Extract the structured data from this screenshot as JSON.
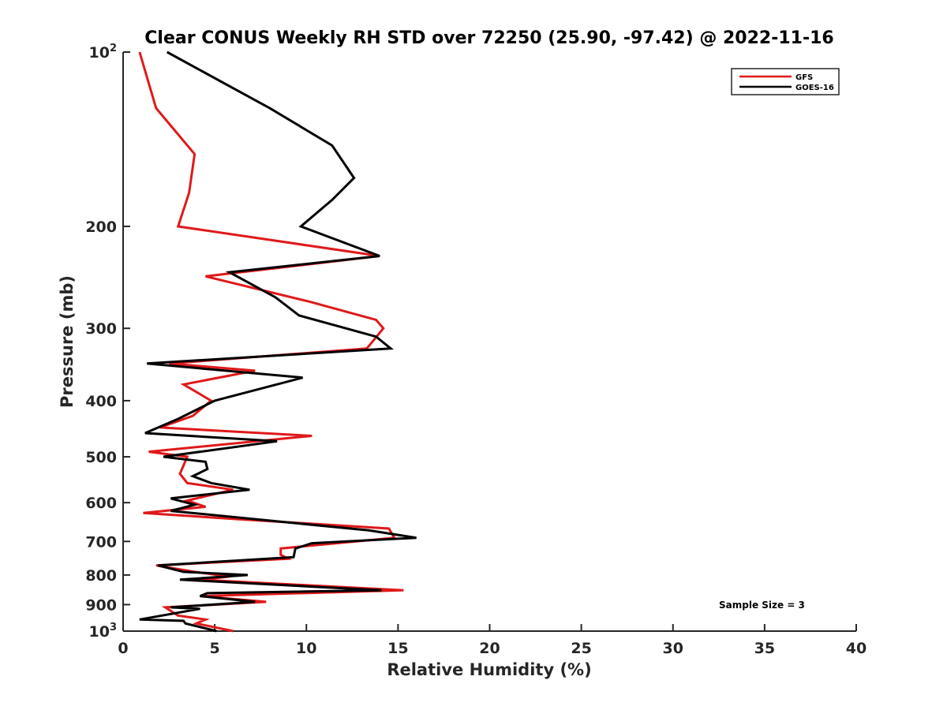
{
  "chart_data": {
    "type": "line",
    "title": "Clear CONUS Weekly RH STD over 72250 (25.90, -97.42) @ 2022-11-16",
    "xlabel": "Relative Humidity (%)",
    "ylabel": "Pressure (mb)",
    "xlim": [
      0,
      40
    ],
    "ylim": [
      100,
      1000
    ],
    "y_scale": "log",
    "y_reversed": true,
    "grid": false,
    "legend_position": "top-right",
    "x_ticks": [
      0,
      5,
      10,
      15,
      20,
      25,
      30,
      35,
      40
    ],
    "y_ticks": [
      {
        "value": 100,
        "base": "10",
        "exp": "2"
      },
      {
        "value": 200,
        "label": "200"
      },
      {
        "value": 300,
        "label": "300"
      },
      {
        "value": 400,
        "label": "400"
      },
      {
        "value": 500,
        "label": "500"
      },
      {
        "value": 600,
        "label": "600"
      },
      {
        "value": 700,
        "label": "700"
      },
      {
        "value": 800,
        "label": "800"
      },
      {
        "value": 900,
        "label": "900"
      },
      {
        "value": 1000,
        "base": "10",
        "exp": "3"
      }
    ],
    "annotation": "Sample Size = 3",
    "series": [
      {
        "name": "GFS",
        "color": "#e0191a",
        "points": [
          [
            0.9,
            100
          ],
          [
            1.8,
            125
          ],
          [
            3.9,
            150
          ],
          [
            3.6,
            175
          ],
          [
            3.0,
            200
          ],
          [
            14.0,
            225
          ],
          [
            4.5,
            244
          ],
          [
            10.2,
            270
          ],
          [
            13.8,
            290
          ],
          [
            14.2,
            300
          ],
          [
            13.3,
            325
          ],
          [
            2.5,
            345
          ],
          [
            7.2,
            355
          ],
          [
            3.3,
            375
          ],
          [
            4.8,
            400
          ],
          [
            3.8,
            425
          ],
          [
            2.0,
            445
          ],
          [
            10.3,
            460
          ],
          [
            1.4,
            490
          ],
          [
            3.5,
            500
          ],
          [
            3.1,
            535
          ],
          [
            3.5,
            555
          ],
          [
            6.0,
            570
          ],
          [
            3.5,
            595
          ],
          [
            4.5,
            610
          ],
          [
            1.1,
            625
          ],
          [
            6.0,
            640
          ],
          [
            14.5,
            665
          ],
          [
            14.8,
            690
          ],
          [
            8.6,
            720
          ],
          [
            8.6,
            738
          ],
          [
            9.0,
            750
          ],
          [
            1.8,
            770
          ],
          [
            3.9,
            790
          ],
          [
            5.8,
            805
          ],
          [
            4.2,
            815
          ],
          [
            15.3,
            850
          ],
          [
            4.2,
            870
          ],
          [
            7.8,
            890
          ],
          [
            2.3,
            910
          ],
          [
            3.0,
            940
          ],
          [
            4.5,
            955
          ],
          [
            4.0,
            970
          ],
          [
            6.0,
            1000
          ]
        ]
      },
      {
        "name": "GOES-16",
        "color": "#000000",
        "points": [
          [
            2.4,
            100
          ],
          [
            8.0,
            125
          ],
          [
            11.4,
            145
          ],
          [
            12.6,
            165
          ],
          [
            11.4,
            180
          ],
          [
            9.7,
            200
          ],
          [
            14.0,
            225
          ],
          [
            5.8,
            240
          ],
          [
            8.3,
            265
          ],
          [
            9.6,
            285
          ],
          [
            13.8,
            310
          ],
          [
            14.6,
            325
          ],
          [
            1.3,
            345
          ],
          [
            9.8,
            365
          ],
          [
            5.0,
            400
          ],
          [
            3.0,
            430
          ],
          [
            1.2,
            455
          ],
          [
            8.4,
            470
          ],
          [
            2.2,
            500
          ],
          [
            4.5,
            510
          ],
          [
            4.6,
            525
          ],
          [
            3.8,
            540
          ],
          [
            4.8,
            555
          ],
          [
            6.9,
            570
          ],
          [
            2.6,
            590
          ],
          [
            3.9,
            605
          ],
          [
            2.6,
            620
          ],
          [
            13.4,
            670
          ],
          [
            16.0,
            690
          ],
          [
            10.3,
            705
          ],
          [
            9.4,
            720
          ],
          [
            9.3,
            745
          ],
          [
            1.9,
            770
          ],
          [
            3.3,
            790
          ],
          [
            6.8,
            800
          ],
          [
            3.1,
            815
          ],
          [
            14.1,
            850
          ],
          [
            4.6,
            860
          ],
          [
            4.2,
            870
          ],
          [
            7.2,
            890
          ],
          [
            2.6,
            910
          ],
          [
            4.2,
            915
          ],
          [
            0.9,
            955
          ],
          [
            3.3,
            960
          ],
          [
            3.4,
            970
          ],
          [
            5.1,
            1000
          ]
        ]
      }
    ]
  }
}
